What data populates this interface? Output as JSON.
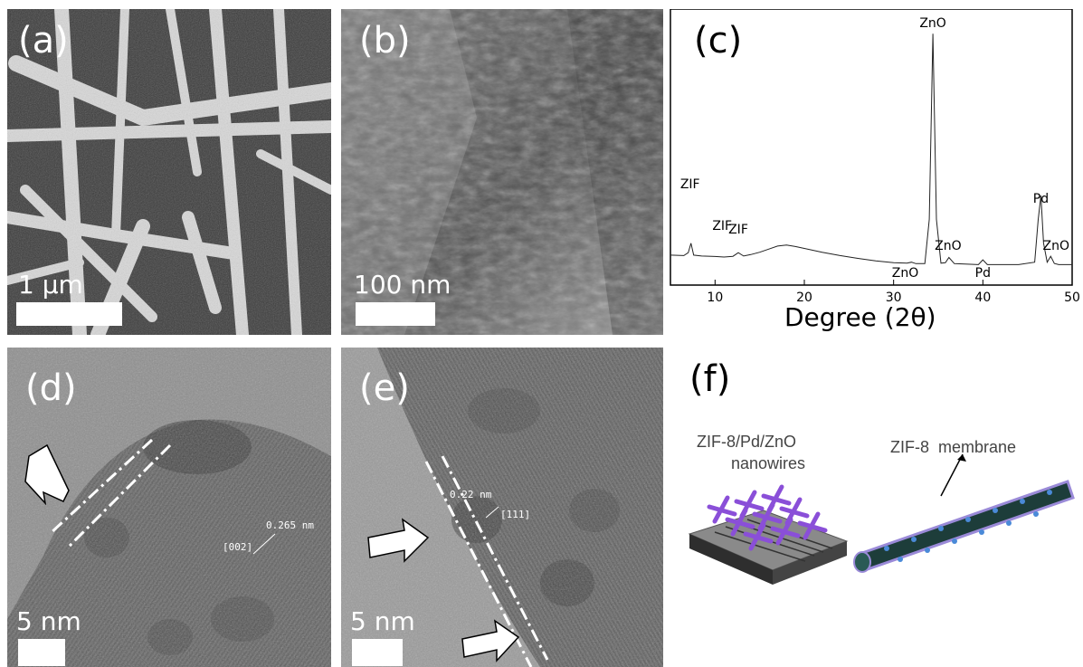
{
  "panels": {
    "a": {
      "label": "(a)",
      "scale_bar": "1 μm"
    },
    "b": {
      "label": "(b)",
      "scale_bar": "100 nm"
    },
    "c": {
      "label": "(c)"
    },
    "d": {
      "label": "(d)",
      "scale_bar": "5 nm",
      "spacing": "0.265 nm",
      "plane": "[002]"
    },
    "e": {
      "label": "(e)",
      "scale_bar": "5 nm",
      "spacing": "0.22 nm",
      "plane": "[111]"
    },
    "f": {
      "label": "(f)",
      "device_label_line1": "ZIF-8/Pd/ZnO",
      "device_label_line2": "nanowires",
      "membrane_label": "ZIF-8  membrane"
    }
  },
  "chart_data": {
    "type": "line",
    "title": "",
    "xlabel": "Degree (2θ)",
    "ylabel": "",
    "xlim": [
      5,
      50
    ],
    "xticks": [
      10,
      20,
      30,
      40,
      50
    ],
    "series": [
      {
        "x": [
          5,
          6.5,
          7.0,
          7.3,
          7.6,
          8.5,
          10,
          11,
          12.0,
          12.6,
          13.2,
          14,
          15,
          16,
          17,
          18,
          19,
          20,
          22,
          24,
          26,
          28,
          30,
          31.5,
          32.0,
          32.5,
          33.5,
          34.0,
          34.4,
          34.8,
          35.3,
          35.8,
          36.2,
          36.8,
          38,
          39.5,
          40.0,
          40.5,
          42,
          44,
          45.8,
          46.2,
          46.5,
          46.8,
          47.2,
          47.6,
          48.0,
          48.5,
          50
        ],
        "y": [
          0.05,
          0.048,
          0.06,
          0.1,
          0.05,
          0.046,
          0.044,
          0.042,
          0.045,
          0.06,
          0.046,
          0.052,
          0.062,
          0.075,
          0.088,
          0.092,
          0.086,
          0.078,
          0.062,
          0.048,
          0.036,
          0.026,
          0.018,
          0.016,
          0.02,
          0.014,
          0.014,
          0.2,
          0.98,
          0.2,
          0.016,
          0.018,
          0.04,
          0.014,
          0.012,
          0.01,
          0.03,
          0.01,
          0.01,
          0.01,
          0.02,
          0.2,
          0.3,
          0.1,
          0.02,
          0.045,
          0.015,
          0.01,
          0.01
        ]
      }
    ],
    "annotations": [
      {
        "text": "ZnO",
        "x": 34.4
      },
      {
        "text": "ZIF",
        "x": 7.2
      },
      {
        "text": "ZIF",
        "x": 10.8
      },
      {
        "text": "ZIF",
        "x": 12.6
      },
      {
        "text": "ZnO",
        "x": 31.3
      },
      {
        "text": "ZnO",
        "x": 36.1
      },
      {
        "text": "Pd",
        "x": 40.0
      },
      {
        "text": "Pd",
        "x": 46.5
      },
      {
        "text": "ZnO",
        "x": 48.2
      }
    ]
  }
}
